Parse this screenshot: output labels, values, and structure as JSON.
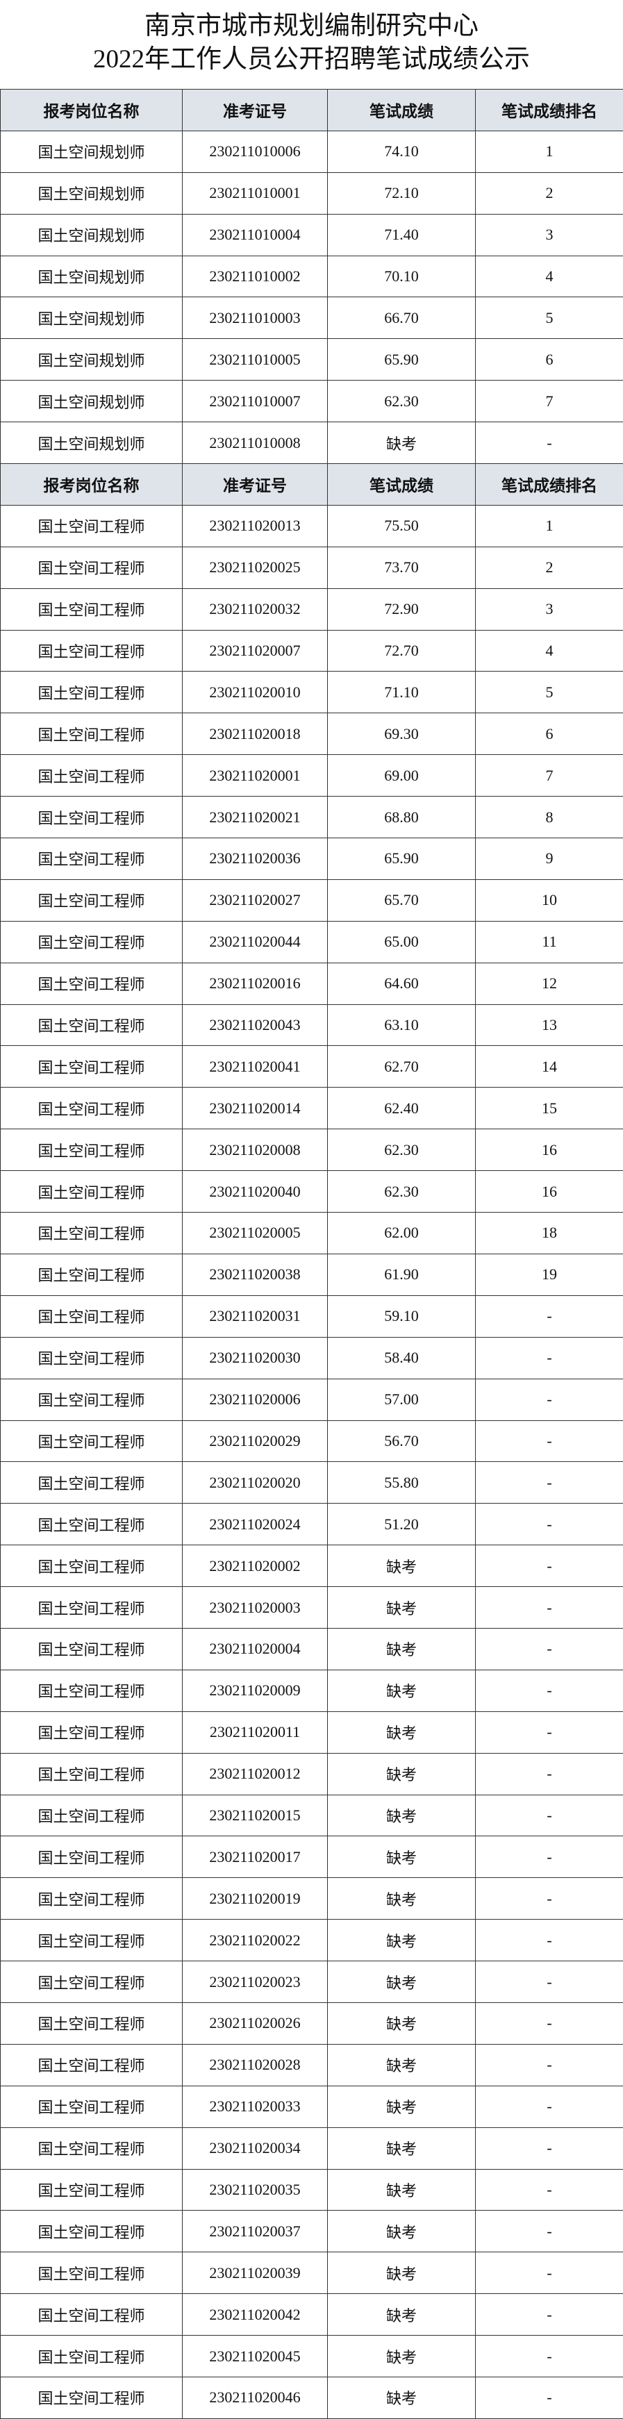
{
  "title": [
    "南京市城市规划编制研究中心",
    "2022年工作人员公开招聘笔试成绩公示"
  ],
  "sections": [
    {
      "header": [
        "报考岗位名称",
        "准考证号",
        "笔试成绩",
        "笔试成绩排名"
      ],
      "rows": [
        [
          "国土空间规划师",
          "230211010006",
          "74.10",
          "1"
        ],
        [
          "国土空间规划师",
          "230211010001",
          "72.10",
          "2"
        ],
        [
          "国土空间规划师",
          "230211010004",
          "71.40",
          "3"
        ],
        [
          "国土空间规划师",
          "230211010002",
          "70.10",
          "4"
        ],
        [
          "国土空间规划师",
          "230211010003",
          "66.70",
          "5"
        ],
        [
          "国土空间规划师",
          "230211010005",
          "65.90",
          "6"
        ],
        [
          "国土空间规划师",
          "230211010007",
          "62.30",
          "7"
        ],
        [
          "国土空间规划师",
          "230211010008",
          "缺考",
          "-"
        ]
      ]
    },
    {
      "header": [
        "报考岗位名称",
        "准考证号",
        "笔试成绩",
        "笔试成绩排名"
      ],
      "rows": [
        [
          "国土空间工程师",
          "230211020013",
          "75.50",
          "1"
        ],
        [
          "国土空间工程师",
          "230211020025",
          "73.70",
          "2"
        ],
        [
          "国土空间工程师",
          "230211020032",
          "72.90",
          "3"
        ],
        [
          "国土空间工程师",
          "230211020007",
          "72.70",
          "4"
        ],
        [
          "国土空间工程师",
          "230211020010",
          "71.10",
          "5"
        ],
        [
          "国土空间工程师",
          "230211020018",
          "69.30",
          "6"
        ],
        [
          "国土空间工程师",
          "230211020001",
          "69.00",
          "7"
        ],
        [
          "国土空间工程师",
          "230211020021",
          "68.80",
          "8"
        ],
        [
          "国土空间工程师",
          "230211020036",
          "65.90",
          "9"
        ],
        [
          "国土空间工程师",
          "230211020027",
          "65.70",
          "10"
        ],
        [
          "国土空间工程师",
          "230211020044",
          "65.00",
          "11"
        ],
        [
          "国土空间工程师",
          "230211020016",
          "64.60",
          "12"
        ],
        [
          "国土空间工程师",
          "230211020043",
          "63.10",
          "13"
        ],
        [
          "国土空间工程师",
          "230211020041",
          "62.70",
          "14"
        ],
        [
          "国土空间工程师",
          "230211020014",
          "62.40",
          "15"
        ],
        [
          "国土空间工程师",
          "230211020008",
          "62.30",
          "16"
        ],
        [
          "国土空间工程师",
          "230211020040",
          "62.30",
          "16"
        ],
        [
          "国土空间工程师",
          "230211020005",
          "62.00",
          "18"
        ],
        [
          "国土空间工程师",
          "230211020038",
          "61.90",
          "19"
        ],
        [
          "国土空间工程师",
          "230211020031",
          "59.10",
          "-"
        ],
        [
          "国土空间工程师",
          "230211020030",
          "58.40",
          "-"
        ],
        [
          "国土空间工程师",
          "230211020006",
          "57.00",
          "-"
        ],
        [
          "国土空间工程师",
          "230211020029",
          "56.70",
          "-"
        ],
        [
          "国土空间工程师",
          "230211020020",
          "55.80",
          "-"
        ],
        [
          "国土空间工程师",
          "230211020024",
          "51.20",
          "-"
        ],
        [
          "国土空间工程师",
          "230211020002",
          "缺考",
          "-"
        ],
        [
          "国土空间工程师",
          "230211020003",
          "缺考",
          "-"
        ],
        [
          "国土空间工程师",
          "230211020004",
          "缺考",
          "-"
        ],
        [
          "国土空间工程师",
          "230211020009",
          "缺考",
          "-"
        ],
        [
          "国土空间工程师",
          "230211020011",
          "缺考",
          "-"
        ],
        [
          "国土空间工程师",
          "230211020012",
          "缺考",
          "-"
        ],
        [
          "国土空间工程师",
          "230211020015",
          "缺考",
          "-"
        ],
        [
          "国土空间工程师",
          "230211020017",
          "缺考",
          "-"
        ],
        [
          "国土空间工程师",
          "230211020019",
          "缺考",
          "-"
        ],
        [
          "国土空间工程师",
          "230211020022",
          "缺考",
          "-"
        ],
        [
          "国土空间工程师",
          "230211020023",
          "缺考",
          "-"
        ],
        [
          "国土空间工程师",
          "230211020026",
          "缺考",
          "-"
        ],
        [
          "国土空间工程师",
          "230211020028",
          "缺考",
          "-"
        ],
        [
          "国土空间工程师",
          "230211020033",
          "缺考",
          "-"
        ],
        [
          "国土空间工程师",
          "230211020034",
          "缺考",
          "-"
        ],
        [
          "国土空间工程师",
          "230211020035",
          "缺考",
          "-"
        ],
        [
          "国土空间工程师",
          "230211020037",
          "缺考",
          "-"
        ],
        [
          "国土空间工程师",
          "230211020039",
          "缺考",
          "-"
        ],
        [
          "国土空间工程师",
          "230211020042",
          "缺考",
          "-"
        ],
        [
          "国土空间工程师",
          "230211020045",
          "缺考",
          "-"
        ],
        [
          "国土空间工程师",
          "230211020046",
          "缺考",
          "-"
        ]
      ]
    }
  ]
}
